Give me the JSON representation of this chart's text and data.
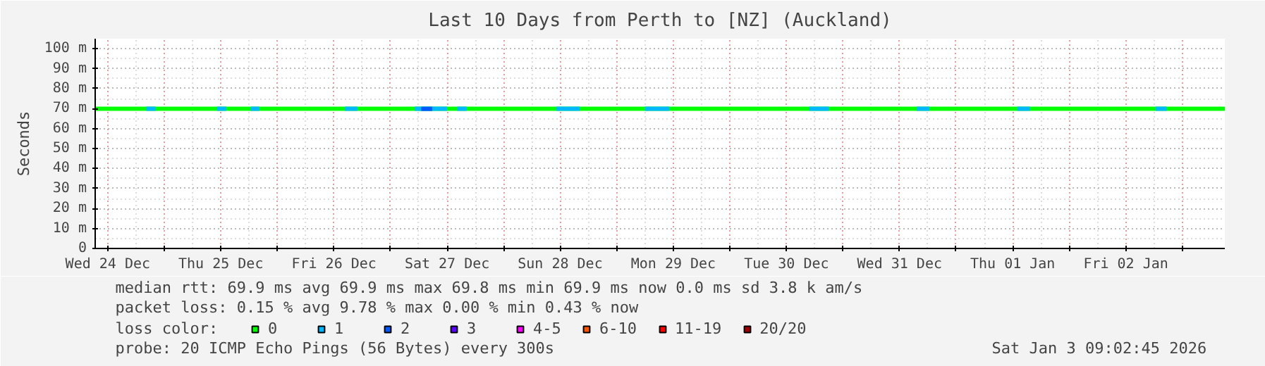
{
  "chart_data": {
    "type": "line",
    "title": "Last 10 Days from Perth to [NZ] (Auckland)",
    "ylabel": "Seconds",
    "xlim": [
      "2025-12-24T09:20",
      "2026-01-03T09:00"
    ],
    "ylim": [
      0,
      105
    ],
    "xticks": [
      {
        "value": "2025-12-24T12:00",
        "label": "Wed 24 Dec"
      },
      {
        "value": "2025-12-25T00:00",
        "label": null
      },
      {
        "value": "2025-12-25T12:00",
        "label": "Thu 25 Dec"
      },
      {
        "value": "2025-12-26T00:00",
        "label": null
      },
      {
        "value": "2025-12-26T12:00",
        "label": "Fri 26 Dec"
      },
      {
        "value": "2025-12-27T00:00",
        "label": null
      },
      {
        "value": "2025-12-27T12:00",
        "label": "Sat 27 Dec"
      },
      {
        "value": "2025-12-28T00:00",
        "label": null
      },
      {
        "value": "2025-12-28T12:00",
        "label": "Sun 28 Dec"
      },
      {
        "value": "2025-12-29T00:00",
        "label": null
      },
      {
        "value": "2025-12-29T12:00",
        "label": "Mon 29 Dec"
      },
      {
        "value": "2025-12-30T00:00",
        "label": null
      },
      {
        "value": "2025-12-30T12:00",
        "label": "Tue 30 Dec"
      },
      {
        "value": "2025-12-31T00:00",
        "label": null
      },
      {
        "value": "2025-12-31T12:00",
        "label": "Wed 31 Dec"
      },
      {
        "value": "2026-01-01T00:00",
        "label": null
      },
      {
        "value": "2026-01-01T12:00",
        "label": "Thu 01 Jan"
      },
      {
        "value": "2026-01-02T00:00",
        "label": null
      },
      {
        "value": "2026-01-02T12:00",
        "label": "Fri 02 Jan"
      },
      {
        "value": "2026-01-03T00:00",
        "label": null
      }
    ],
    "yticks": [
      0,
      {
        "value": 10,
        "label": "10 m"
      },
      {
        "value": 20,
        "label": "20 m"
      },
      {
        "value": 30,
        "label": "30 m"
      },
      {
        "value": 40,
        "label": "40 m"
      },
      {
        "value": 50,
        "label": "50 m"
      },
      {
        "value": 60,
        "label": "60 m"
      },
      {
        "value": 70,
        "label": "70 m"
      },
      {
        "value": 80,
        "label": "80 m"
      },
      {
        "value": 90,
        "label": "90 m"
      },
      {
        "value": 100,
        "label": "100 m"
      }
    ],
    "grid": true,
    "legend": "bottom",
    "legend_title": "loss color:",
    "series": [
      {
        "name": "0",
        "color": "#00ff00",
        "x": [
          "2025-12-24T09:20",
          "2026-01-03T09:00"
        ],
        "values": [
          69.9,
          69.9
        ]
      },
      {
        "name": "1",
        "color": "#00b8ff",
        "x": [
          "2025-12-24T20:10",
          "2025-12-24T22:10",
          null,
          "2025-12-25T11:10",
          "2025-12-25T13:10",
          null,
          "2025-12-25T18:20",
          "2025-12-25T20:10",
          null,
          "2025-12-26T14:20",
          "2025-12-26T17:00",
          null,
          "2025-12-27T05:10",
          "2025-12-27T12:00",
          null,
          "2025-12-27T14:10",
          "2025-12-27T16:10",
          null,
          "2025-12-28T11:10",
          "2025-12-28T16:10",
          null,
          "2025-12-29T06:00",
          "2025-12-29T11:10",
          null,
          "2025-12-30T16:50",
          "2025-12-30T21:00",
          null,
          "2025-12-31T15:40",
          "2025-12-31T18:20",
          null,
          "2026-01-01T13:00",
          "2026-01-01T15:40",
          null,
          "2026-01-02T18:20",
          "2026-01-02T20:40"
        ],
        "values": [
          69.9,
          69.9,
          null,
          69.9,
          69.9,
          null,
          69.9,
          69.9,
          null,
          69.9,
          69.9,
          null,
          69.9,
          69.9,
          null,
          69.9,
          69.9,
          null,
          69.9,
          69.9,
          null,
          69.9,
          69.9,
          null,
          69.9,
          69.9,
          null,
          69.9,
          69.9,
          null,
          69.9,
          69.9,
          null,
          69.9,
          69.9
        ]
      },
      {
        "name": "2",
        "color": "#0059ff",
        "x": [
          "2025-12-27T06:30",
          "2025-12-27T08:50"
        ],
        "values": [
          69.9,
          69.9
        ]
      },
      {
        "name": "3",
        "color": "#5e00ff"
      },
      {
        "name": "4-5",
        "color": "#ff00ff"
      },
      {
        "name": "6-10",
        "color": "#ff5500"
      },
      {
        "name": "11-19",
        "color": "#ff0000"
      },
      {
        "name": "20/20",
        "color": "#a10000"
      }
    ],
    "annotations": [
      "median rtt:  69.9 ms avg  69.9 ms max  69.8 ms min  69.9 ms now  0.0 ms sd  3.8 k am/s",
      "packet loss: 0.15 % avg  9.78 % max  0.00 % min  0.43 % now",
      "probe:       20 ICMP Echo Pings (56 Bytes) every 300s",
      "Sat Jan  3 09:02:45 2026"
    ]
  }
}
